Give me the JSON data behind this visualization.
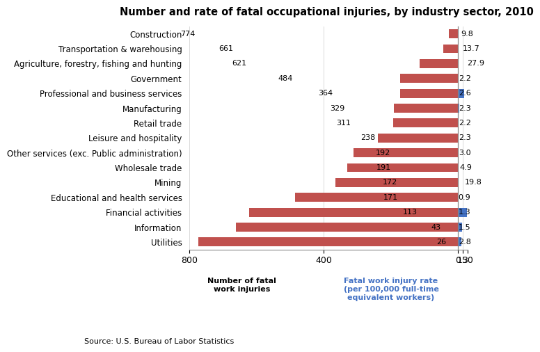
{
  "title": "Number and rate of fatal occupational injuries, by industry sector, 2010",
  "categories": [
    "Construction",
    "Transportation & warehousing",
    "Agriculture, forestry, fishing and hunting",
    "Government",
    "Professional and business services",
    "Manufacturing",
    "Retail trade",
    "Leisure and hospitality",
    "Other services (exc. Public administration)",
    "Wholesale trade",
    "Mining",
    "Educational and health services",
    "Financial activities",
    "Information",
    "Utilities"
  ],
  "fatalities": [
    774,
    661,
    621,
    484,
    364,
    329,
    311,
    238,
    192,
    191,
    172,
    171,
    113,
    43,
    26
  ],
  "rates": [
    9.8,
    13.7,
    27.9,
    2.2,
    2.6,
    2.3,
    2.2,
    2.3,
    3.0,
    4.9,
    19.8,
    0.9,
    1.3,
    1.5,
    2.8
  ],
  "bar_color_fatalities": "#c0504d",
  "bar_color_rates": "#4472c4",
  "source_text": "Source: U.S. Bureau of Labor Statistics",
  "xlabel_left": "Number of fatal\nwork injuries",
  "xlabel_right": "Fatal work injury rate\n(per 100,000 full-time\nequivalent workers)",
  "title_fontsize": 10.5,
  "category_fontsize": 8.5,
  "tick_fontsize": 9,
  "label_fontsize": 8,
  "source_fontsize": 8
}
